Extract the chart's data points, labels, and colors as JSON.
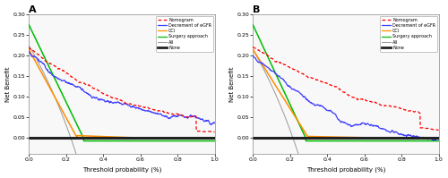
{
  "panel_A_label": "A",
  "panel_B_label": "B",
  "xlabel": "Threshold probability (%)",
  "ylabel": "Net Benefit",
  "xlim": [
    0,
    1.0
  ],
  "ylim_A": [
    -0.04,
    0.3
  ],
  "ylim_B": [
    -0.04,
    0.3
  ],
  "yticks": [
    0.0,
    0.05,
    0.1,
    0.15,
    0.2,
    0.25,
    0.3
  ],
  "xticks": [
    0.0,
    0.2,
    0.4,
    0.6,
    0.8,
    1.0
  ],
  "colors": {
    "Nomogram": "#FF0000",
    "Decrement_eGFR": "#4040FF",
    "CCI": "#FF8C00",
    "Surgery_approach": "#00BB00",
    "All": "#999999",
    "None": "#222222"
  },
  "prevalence_A": 0.225,
  "prevalence_B": 0.215,
  "figsize": [
    5.0,
    1.99
  ],
  "dpi": 100
}
